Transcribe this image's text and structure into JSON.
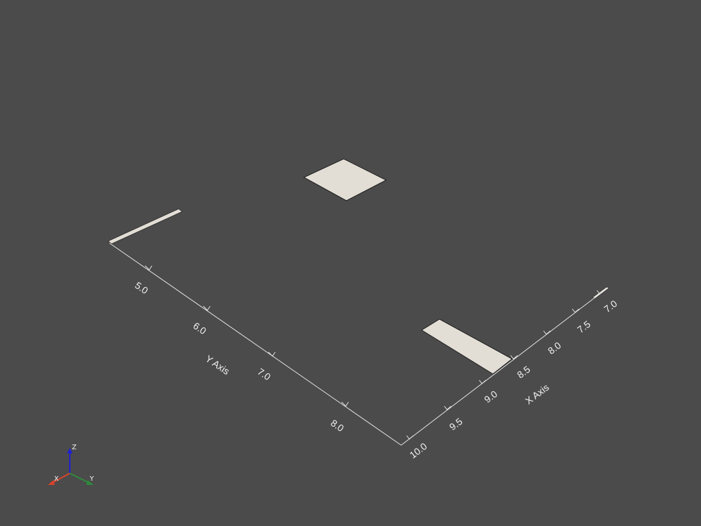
{
  "scene": {
    "background_color": "#4b4b4b",
    "surface_color": "#e3ded5",
    "axis_color": "#e6e6e6"
  },
  "axes": {
    "y_axis": {
      "title": "Y Axis",
      "ticks": [
        "5.0",
        "6.0",
        "7.0",
        "8.0"
      ]
    },
    "x_axis": {
      "title": "X Axis",
      "ticks": [
        "10.0",
        "9.5",
        "9.0",
        "8.5",
        "8.0",
        "7.5",
        "7.0"
      ]
    }
  },
  "orientation_widget": {
    "x_label": "X",
    "y_label": "Y",
    "z_label": "Z",
    "x_color": "#d9432b",
    "y_color": "#2e8b3d",
    "z_color": "#1f1fd6"
  }
}
